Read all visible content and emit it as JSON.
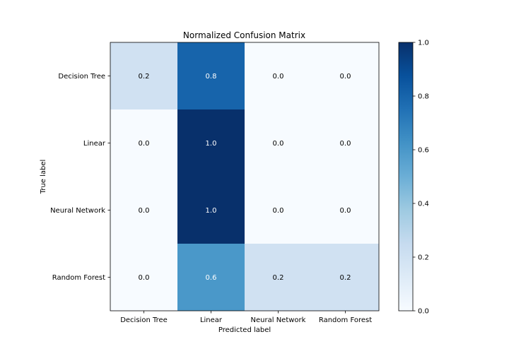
{
  "chart_data": {
    "type": "heatmap",
    "title": "Normalized Confusion Matrix",
    "xlabel": "Predicted label",
    "ylabel": "True label",
    "x_categories": [
      "Decision Tree",
      "Linear",
      "Neural Network",
      "Random Forest"
    ],
    "y_categories": [
      "Decision Tree",
      "Linear",
      "Neural Network",
      "Random Forest"
    ],
    "values": [
      [
        0.2,
        0.8,
        0.0,
        0.0
      ],
      [
        0.0,
        1.0,
        0.0,
        0.0
      ],
      [
        0.0,
        1.0,
        0.0,
        0.0
      ],
      [
        0.0,
        0.6,
        0.2,
        0.2
      ]
    ],
    "cell_labels": [
      [
        "0.2",
        "0.8",
        "0.0",
        "0.0"
      ],
      [
        "0.0",
        "1.0",
        "0.0",
        "0.0"
      ],
      [
        "0.0",
        "1.0",
        "0.0",
        "0.0"
      ],
      [
        "0.0",
        "0.6",
        "0.2",
        "0.2"
      ]
    ],
    "colormap": "Blues",
    "color_range": [
      0,
      1
    ],
    "colorbar": {
      "ticks": [
        0.0,
        0.2,
        0.4,
        0.6,
        0.8,
        1.0
      ],
      "tick_labels": [
        "0.0",
        "0.2",
        "0.4",
        "0.6",
        "0.8",
        "1.0"
      ]
    },
    "colors": {
      "low": "#f7fbff",
      "high": "#08306b",
      "text_dark": "#000000",
      "text_light": "#ffffff"
    }
  }
}
